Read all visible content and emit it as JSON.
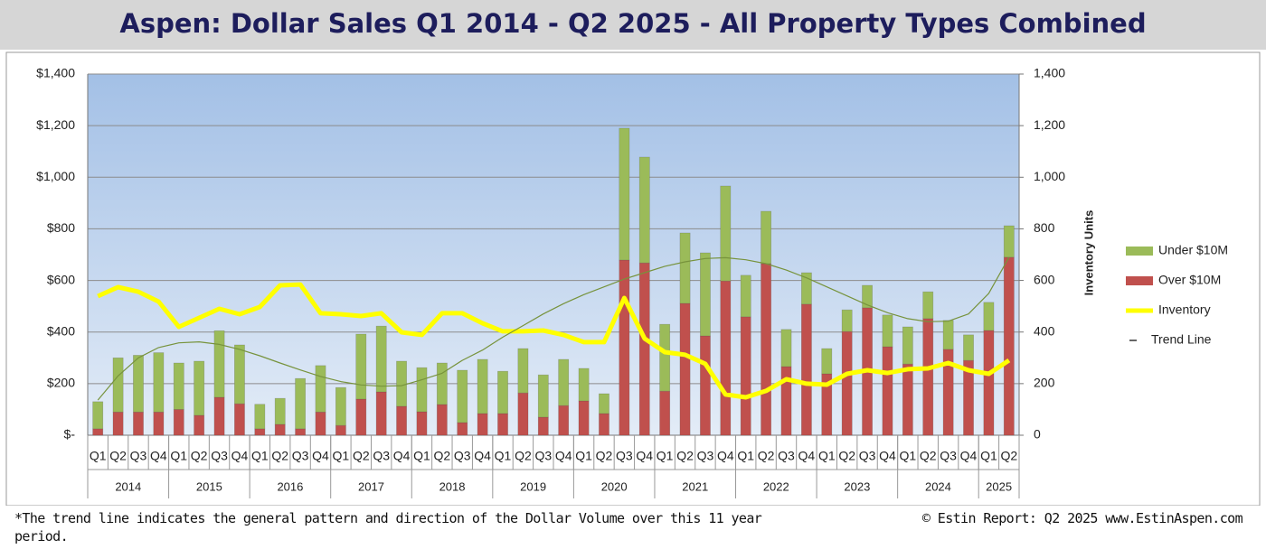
{
  "chart_data": {
    "type": "bar",
    "title": "Aspen:  Dollar Sales Q1 2014 - Q2 2025 -  All Property Types Combined",
    "y2_title": "Inventory Units",
    "footnote": "*The trend line indicates the general pattern and direction of the Dollar Volume over this 11 year period.",
    "credit": "© Estin Report: Q2 2025 www.EstinAspen.com",
    "groups": [
      {
        "label": "2014",
        "categories": [
          "Q1",
          "Q2",
          "Q3",
          "Q4"
        ]
      },
      {
        "label": "2015",
        "categories": [
          "Q1",
          "Q2",
          "Q3",
          "Q4"
        ]
      },
      {
        "label": "2016",
        "categories": [
          "Q1",
          "Q2",
          "Q3",
          "Q4"
        ]
      },
      {
        "label": "2017",
        "categories": [
          "Q1",
          "Q2",
          "Q3",
          "Q4"
        ]
      },
      {
        "label": "2018",
        "categories": [
          "Q1",
          "Q2",
          "Q3",
          "Q4"
        ]
      },
      {
        "label": "2019",
        "categories": [
          "Q1",
          "Q2",
          "Q3",
          "Q4"
        ]
      },
      {
        "label": "2020",
        "categories": [
          "Q1",
          "Q2",
          "Q3",
          "Q4"
        ]
      },
      {
        "label": "2021",
        "categories": [
          "Q1",
          "Q2",
          "Q3",
          "Q4"
        ]
      },
      {
        "label": "2022",
        "categories": [
          "Q1",
          "Q2",
          "Q3",
          "Q4"
        ]
      },
      {
        "label": "2023",
        "categories": [
          "Q1",
          "Q2",
          "Q3",
          "Q4"
        ]
      },
      {
        "label": "2024",
        "categories": [
          "Q1",
          "Q2",
          "Q3",
          "Q4"
        ]
      },
      {
        "label": "2025",
        "categories": [
          "Q1",
          "Q2"
        ]
      }
    ],
    "series": [
      {
        "name": "Under $10M",
        "type": "bar",
        "color": "#9bbb59",
        "values": [
          105,
          210,
          220,
          230,
          180,
          210,
          258,
          228,
          95,
          101,
          195,
          180,
          147,
          252,
          255,
          175,
          171,
          161,
          203,
          210,
          164,
          172,
          164,
          179,
          126,
          77,
          511,
          410,
          259,
          273,
          322,
          368,
          161,
          203,
          144,
          122,
          98,
          84,
          87,
          123,
          144,
          104,
          112,
          99,
          109,
          122
        ]
      },
      {
        "name": "Over $10M",
        "type": "bar",
        "color": "#c0504d",
        "values": [
          25,
          90,
          90,
          90,
          100,
          77,
          147,
          122,
          25,
          42,
          25,
          90,
          38,
          140,
          168,
          112,
          91,
          119,
          49,
          84,
          84,
          164,
          70,
          115,
          133,
          84,
          679,
          668,
          171,
          511,
          385,
          598,
          459,
          665,
          266,
          508,
          238,
          402,
          494,
          343,
          276,
          452,
          333,
          290,
          406,
          690
        ]
      },
      {
        "name": "Inventory",
        "type": "line",
        "axis": "y2",
        "color": "#ffff00",
        "values": [
          539,
          574,
          556,
          518,
          420,
          455,
          490,
          469,
          497,
          581,
          584,
          473,
          469,
          462,
          473,
          399,
          389,
          473,
          473,
          434,
          403,
          403,
          406,
          389,
          361,
          361,
          532,
          375,
          322,
          312,
          277,
          158,
          147,
          172,
          217,
          200,
          196,
          238,
          252,
          241,
          256,
          259,
          280,
          252,
          238,
          290
        ]
      },
      {
        "name": "Trend Line",
        "type": "line",
        "color": "#77933c",
        "values": [
          136,
          230,
          300,
          340,
          358,
          362,
          352,
          333,
          308,
          280,
          253,
          228,
          208,
          195,
          190,
          192,
          215,
          240,
          290,
          330,
          380,
          425,
          470,
          510,
          545,
          575,
          605,
          630,
          655,
          672,
          685,
          688,
          680,
          665,
          640,
          610,
          575,
          540,
          505,
          475,
          452,
          440,
          442,
          470,
          550,
          690
        ]
      }
    ],
    "ylim": [
      0,
      1400
    ],
    "yticks": [
      {
        "value": 0,
        "label": "$-"
      },
      {
        "value": 200,
        "label": "$200"
      },
      {
        "value": 400,
        "label": "$400"
      },
      {
        "value": 600,
        "label": "$600"
      },
      {
        "value": 800,
        "label": "$800"
      },
      {
        "value": 1000,
        "label": "$1,000"
      },
      {
        "value": 1200,
        "label": "$1,200"
      },
      {
        "value": 1400,
        "label": "$1,400"
      }
    ],
    "y2lim": [
      0,
      1400
    ],
    "y2ticks": [
      0,
      200,
      400,
      600,
      800,
      {
        "value": 1000,
        "label": "1,000"
      },
      {
        "value": 1200,
        "label": "1,200"
      },
      {
        "value": 1400,
        "label": "1,400"
      }
    ],
    "grid": true
  }
}
